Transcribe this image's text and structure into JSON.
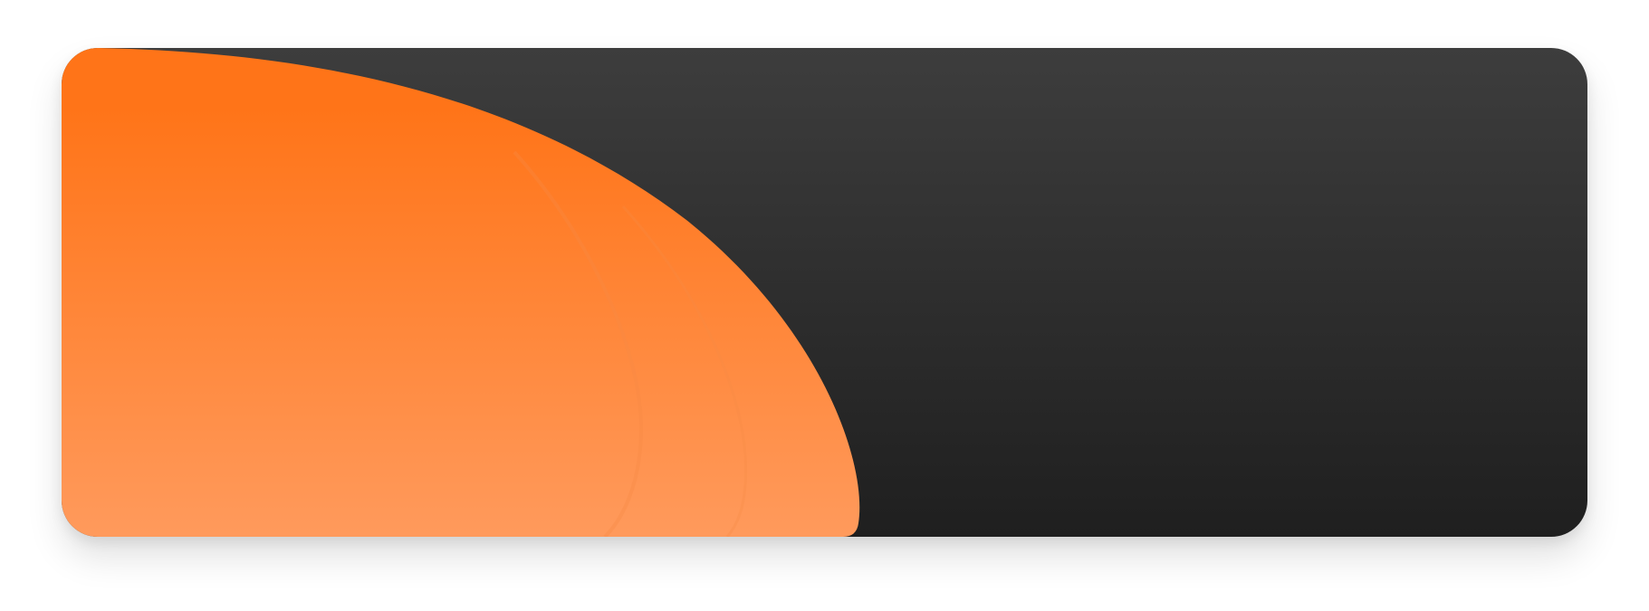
{
  "colors": {
    "dark_top": "#3d3d3d",
    "dark_bottom": "#1f1f1f",
    "orange_top": "#ff7418",
    "orange_bottom": "#ff9a5c",
    "ring_stroke": "#f58a45"
  },
  "icons": {
    "decoration": "quarter-circle-shape"
  }
}
